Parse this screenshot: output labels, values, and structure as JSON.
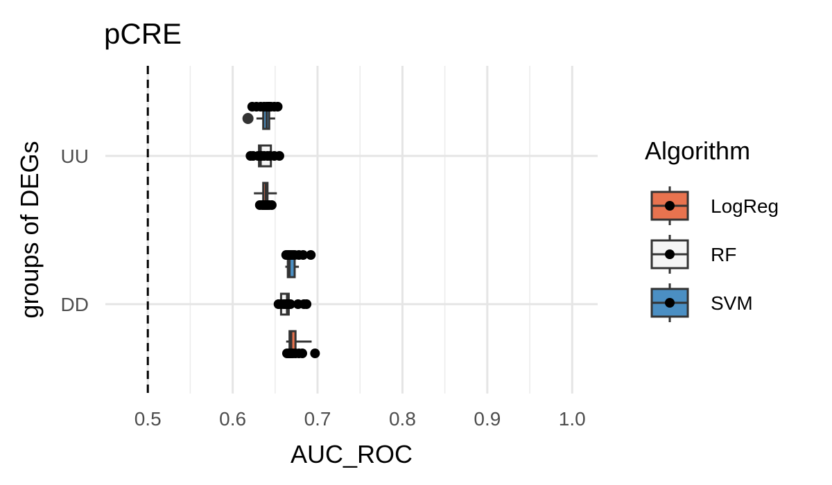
{
  "chart_data": {
    "type": "boxplot",
    "title": "pCRE",
    "xlabel": "AUC_ROC",
    "ylabel": "groups of DEGs",
    "xlim": [
      0.5,
      1.0
    ],
    "x_ticks": [
      0.5,
      0.6,
      0.7,
      0.8,
      0.9,
      1.0
    ],
    "x_tick_labels": [
      "0.5",
      "0.6",
      "0.7",
      "0.8",
      "0.9",
      "1.0"
    ],
    "categories": [
      "UU",
      "DD"
    ],
    "reference_line": {
      "x": 0.5,
      "style": "dashed"
    },
    "grid": true,
    "legend": {
      "title": "Algorithm",
      "position": "right"
    },
    "series": [
      {
        "name": "LogReg",
        "color": "#E8734F",
        "boxes": [
          {
            "category": "UU",
            "min": 0.625,
            "q1": 0.636,
            "median": 0.639,
            "q3": 0.641,
            "max": 0.652,
            "points": [
              0.632,
              0.635,
              0.636,
              0.637,
              0.638,
              0.639,
              0.64,
              0.641,
              0.643,
              0.646
            ]
          },
          {
            "category": "DD",
            "min": 0.663,
            "q1": 0.667,
            "median": 0.669,
            "q3": 0.674,
            "max": 0.693,
            "points": [
              0.664,
              0.666,
              0.667,
              0.668,
              0.669,
              0.671,
              0.674,
              0.678,
              0.682,
              0.697
            ]
          }
        ]
      },
      {
        "name": "RF",
        "color": "#F5F5F5",
        "boxes": [
          {
            "category": "UU",
            "min": 0.62,
            "q1": 0.631,
            "median": 0.633,
            "q3": 0.645,
            "max": 0.65,
            "points": [
              0.621,
              0.624,
              0.63,
              0.633,
              0.634,
              0.637,
              0.641,
              0.644,
              0.649,
              0.655
            ]
          },
          {
            "category": "DD",
            "min": 0.652,
            "q1": 0.657,
            "median": 0.664,
            "q3": 0.666,
            "max": 0.67,
            "points": [
              0.654,
              0.657,
              0.66,
              0.662,
              0.664,
              0.666,
              0.668,
              0.677,
              0.684,
              0.687
            ]
          }
        ]
      },
      {
        "name": "SVM",
        "color": "#4B8FC3",
        "boxes": [
          {
            "category": "UU",
            "min": 0.628,
            "q1": 0.636,
            "median": 0.64,
            "q3": 0.643,
            "max": 0.65,
            "outliers": [
              0.618
            ],
            "points": [
              0.623,
              0.628,
              0.633,
              0.637,
              0.64,
              0.642,
              0.643,
              0.645,
              0.649,
              0.653
            ]
          },
          {
            "category": "DD",
            "min": 0.662,
            "q1": 0.665,
            "median": 0.667,
            "q3": 0.673,
            "max": 0.678,
            "points": [
              0.663,
              0.665,
              0.666,
              0.667,
              0.669,
              0.671,
              0.673,
              0.678,
              0.683,
              0.692
            ]
          }
        ]
      }
    ]
  }
}
